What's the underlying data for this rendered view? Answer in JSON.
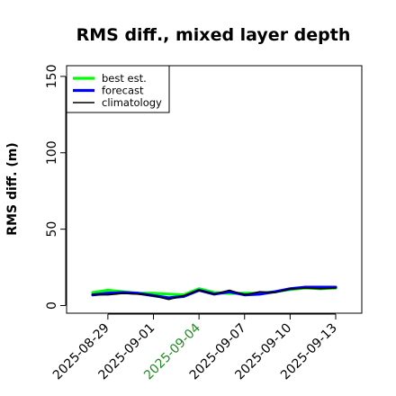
{
  "chart_data": {
    "type": "line",
    "title": "RMS diff., mixed layer depth",
    "xlabel": "",
    "ylabel": "RMS diff. (m)",
    "ylim": [
      -5,
      157
    ],
    "yticks": [
      0,
      50,
      100,
      150
    ],
    "ytick_labels": [
      "0",
      "50",
      "100",
      "150"
    ],
    "xticks": [
      "2025-08-29",
      "2025-09-01",
      "2025-09-04",
      "2025-09-07",
      "2025-09-10",
      "2025-09-13"
    ],
    "xtick_colors": [
      "#000000",
      "#000000",
      "#228b22",
      "#000000",
      "#000000",
      "#000000"
    ],
    "x": [
      "2025-08-28",
      "2025-08-29",
      "2025-08-30",
      "2025-08-31",
      "2025-09-01",
      "2025-09-02",
      "2025-09-03",
      "2025-09-04",
      "2025-09-05",
      "2025-09-06",
      "2025-09-07",
      "2025-09-08",
      "2025-09-09",
      "2025-09-10",
      "2025-09-11",
      "2025-09-12",
      "2025-09-13"
    ],
    "grid": false,
    "legend_position": "top-left",
    "series": [
      {
        "name": "best est.",
        "color": "#00ff00",
        "values": [
          8.5,
          10,
          9,
          8,
          8,
          7.5,
          7,
          11,
          8.5,
          8,
          8,
          8,
          9,
          10.5,
          11.5,
          11,
          11.5
        ]
      },
      {
        "name": "forecast",
        "color": "#0000ff",
        "values": [
          7,
          8,
          8.5,
          8,
          6.5,
          5,
          6,
          10,
          7.5,
          9,
          7,
          7.5,
          9,
          11,
          12,
          12,
          12
        ]
      },
      {
        "name": "climatology",
        "color": "#000000",
        "values": [
          7,
          7,
          8,
          7.5,
          6.5,
          4,
          6.5,
          10,
          7.5,
          10,
          7,
          9,
          8.5,
          11,
          11.5,
          11,
          11.5
        ]
      }
    ]
  }
}
